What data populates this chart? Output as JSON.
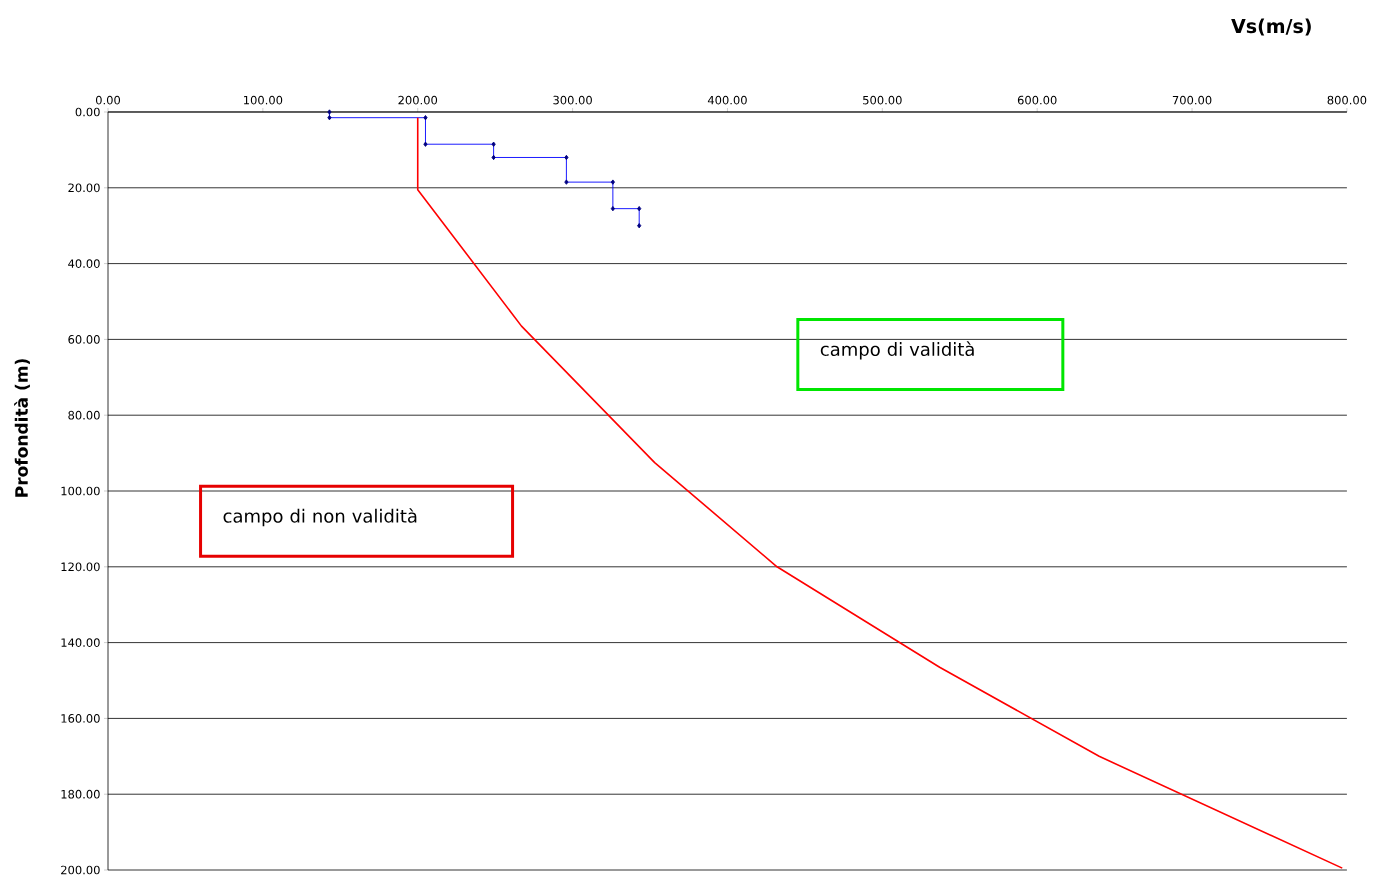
{
  "chart_data": {
    "type": "line",
    "xlabel": "Vs(m/s)",
    "ylabel": "Profondità (m)",
    "xlim": [
      0,
      800
    ],
    "ylim": [
      200,
      0
    ],
    "xticks": [
      {
        "value": 0,
        "label": "0.00"
      },
      {
        "value": 100,
        "label": "100.00"
      },
      {
        "value": 200,
        "label": "200.00"
      },
      {
        "value": 300,
        "label": "300.00"
      },
      {
        "value": 400,
        "label": "400.00"
      },
      {
        "value": 500,
        "label": "500.00"
      },
      {
        "value": 600,
        "label": "600.00"
      },
      {
        "value": 700,
        "label": "700.00"
      },
      {
        "value": 800,
        "label": "800.00"
      }
    ],
    "yticks": [
      {
        "value": 0,
        "label": "0.00"
      },
      {
        "value": 20,
        "label": "20.00"
      },
      {
        "value": 40,
        "label": "40.00"
      },
      {
        "value": 60,
        "label": "60.00"
      },
      {
        "value": 80,
        "label": "80.00"
      },
      {
        "value": 100,
        "label": "100.00"
      },
      {
        "value": 120,
        "label": "120.00"
      },
      {
        "value": 140,
        "label": "140.00"
      },
      {
        "value": 160,
        "label": "160.00"
      },
      {
        "value": 180,
        "label": "180.00"
      },
      {
        "value": 200,
        "label": "200.00"
      }
    ],
    "grid": "y",
    "series": [
      {
        "color": "#0000ff",
        "marker": "diamond",
        "x": [
          143,
          143,
          205,
          205,
          249,
          249,
          296,
          296,
          326,
          326,
          343,
          343
        ],
        "values": [
          0,
          1.5,
          1.5,
          8.5,
          8.5,
          12,
          12,
          18.5,
          18.5,
          25.5,
          25.5,
          30
        ]
      },
      {
        "color": "#ff0000",
        "marker": "none",
        "x": [
          200,
          200,
          267,
          353,
          432,
          537,
          640,
          797
        ],
        "values": [
          1.5,
          20.5,
          56.5,
          92.5,
          120,
          146.5,
          170,
          199.5
        ]
      }
    ],
    "annotations": [
      "campo di validità",
      "campo di non validità"
    ]
  }
}
